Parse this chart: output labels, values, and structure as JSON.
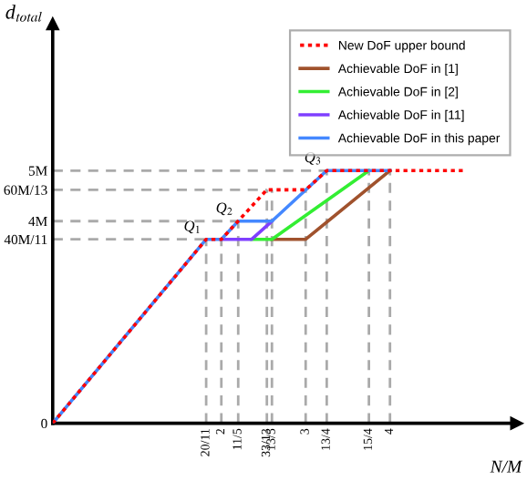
{
  "chart_data": {
    "type": "line",
    "ylabel": "d$_{total}$",
    "xlabel": "N/M",
    "xlim": [
      0,
      5.5
    ],
    "ylim": [
      0,
      7.9
    ],
    "xticks": [
      {
        "value": 1.82,
        "label": "20/11"
      },
      2,
      {
        "value": 2.2,
        "label": "11/5"
      },
      {
        "value": 2.54,
        "label": "33/13"
      },
      {
        "value": 2.6,
        "label": "13/5"
      },
      3,
      {
        "value": 3.25,
        "label": "13/4"
      },
      {
        "value": 3.75,
        "label": "15/4"
      },
      4
    ],
    "yticks": [
      {
        "value": 0,
        "label": "0"
      },
      {
        "value": 3.64,
        "label": "40M/11"
      },
      {
        "value": 4,
        "label": "4M"
      },
      {
        "value": 4.62,
        "label": "60M/13"
      },
      {
        "value": 5,
        "label": "5M"
      }
    ],
    "series": [
      {
        "name": "New DoF upper bound",
        "color": "#ff0000",
        "line_style": "dotted",
        "x": [
          0,
          1.82,
          2,
          2.54,
          3,
          3.25,
          4.9
        ],
        "values": [
          0,
          3.64,
          3.64,
          4.62,
          4.62,
          5,
          5
        ]
      },
      {
        "name": "Achievable DoF in [1]",
        "color": "#a0522d",
        "x": [
          2.6,
          3,
          4
        ],
        "values": [
          3.64,
          3.64,
          5
        ]
      },
      {
        "name": "Achievable DoF in [2]",
        "color": "#33ee33",
        "x": [
          2.36,
          2.6,
          3.75
        ],
        "values": [
          3.64,
          3.64,
          5
        ]
      },
      {
        "name": "Achievable DoF in [11]",
        "color": "#7f3fff",
        "x": [
          2,
          2.36,
          2.6
        ],
        "values": [
          3.64,
          3.64,
          4
        ]
      },
      {
        "name": "Achievable DoF in this paper",
        "color": "#4488ff",
        "x": [
          0,
          1.82,
          2,
          2.2,
          2.6,
          3.25,
          4
        ],
        "values": [
          0,
          3.64,
          3.64,
          4,
          4,
          5,
          5
        ]
      }
    ],
    "legend": "top right",
    "ref_lines": [
      {
        "axis": "y",
        "value": 3.64,
        "color": "#aaaaaa",
        "line_style": "dashed"
      },
      {
        "axis": "y",
        "value": 4,
        "color": "#aaaaaa",
        "line_style": "dashed"
      },
      {
        "axis": "y",
        "value": 4.62,
        "color": "#aaaaaa",
        "line_style": "dashed"
      },
      {
        "axis": "y",
        "value": 5,
        "color": "#aaaaaa",
        "line_style": "dashed"
      },
      {
        "axis": "x",
        "value": 1.82,
        "color": "#aaaaaa",
        "line_style": "dashed"
      },
      {
        "axis": "x",
        "value": 2,
        "color": "#aaaaaa",
        "line_style": "dashed"
      },
      {
        "axis": "x",
        "value": 2.2,
        "color": "#aaaaaa",
        "line_style": "dashed"
      },
      {
        "axis": "x",
        "value": 2.54,
        "color": "#aaaaaa",
        "line_style": "dashed"
      },
      {
        "axis": "x",
        "value": 2.6,
        "color": "#aaaaaa",
        "line_style": "dashed"
      },
      {
        "axis": "x",
        "value": 3,
        "color": "#aaaaaa",
        "line_style": "dashed"
      },
      {
        "axis": "x",
        "value": 3.25,
        "color": "#aaaaaa",
        "line_style": "dashed"
      },
      {
        "axis": "x",
        "value": 3.75,
        "color": "#aaaaaa",
        "line_style": "dashed"
      },
      {
        "axis": "x",
        "value": 4,
        "color": "#aaaaaa",
        "line_style": "dashed"
      }
    ],
    "annotations": [
      {
        "text": "Q$_{1}$",
        "x": 1.82,
        "y": 3.64
      },
      {
        "text": "Q$_{2}$",
        "x": 2.2,
        "y": 4
      },
      {
        "text": "Q$_{3}$",
        "x": 3.25,
        "y": 5
      }
    ]
  }
}
